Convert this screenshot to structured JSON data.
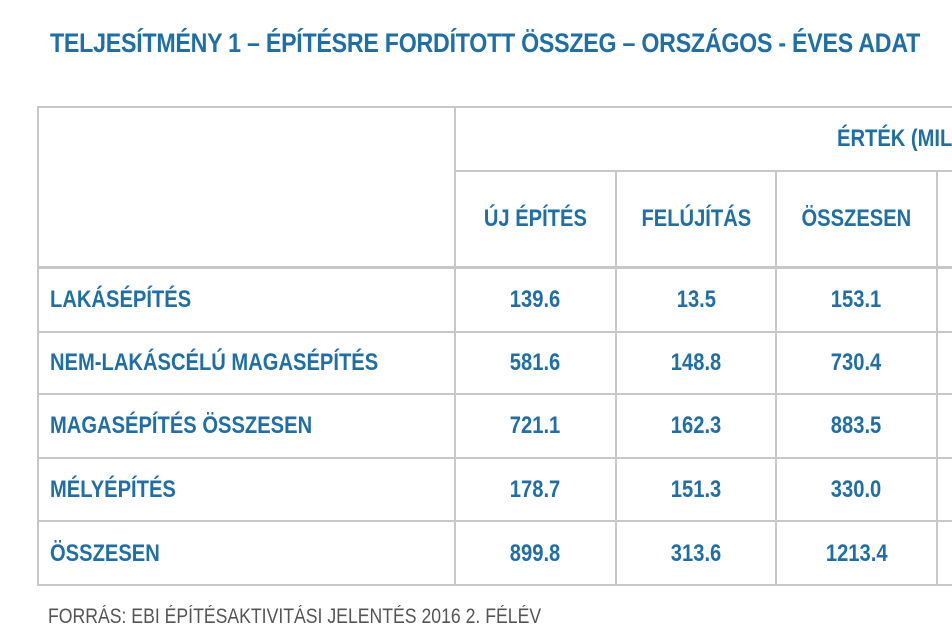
{
  "title": "TELJESÍTMÉNY 1 – ÉPÍTÉSRE FORDÍTOTT ÖSSZEG – ORSZÁGOS - ÉVES ADAT",
  "table": {
    "group_header": "ÉRTÉK (MIL",
    "columns": [
      "ÚJ ÉPÍTÉS",
      "FELÚJÍTÁS",
      "ÖSSZESEN"
    ],
    "rows": [
      {
        "label": "LAKÁSÉPÍTÉS",
        "values": [
          "139.6",
          "13.5",
          "153.1"
        ]
      },
      {
        "label": "NEM-LAKÁSCÉLÚ MAGASÉPÍTÉS",
        "values": [
          "581.6",
          "148.8",
          "730.4"
        ]
      },
      {
        "label": "MAGASÉPÍTÉS ÖSSZESEN",
        "values": [
          "721.1",
          "162.3",
          "883.5"
        ]
      },
      {
        "label": "MÉLYÉPÍTÉS",
        "values": [
          "178.7",
          "151.3",
          "330.0"
        ]
      },
      {
        "label": "ÖSSZESEN",
        "values": [
          "899.8",
          "313.6",
          "1213.4"
        ]
      }
    ]
  },
  "source": "FORRÁS: EBI ÉPÍTÉSAKTIVITÁSI JELENTÉS 2016 2. FÉLÉV",
  "colors": {
    "text_blue": "#1e6fa8",
    "grid_gray": "#c8c8c8",
    "source_gray": "#555555"
  }
}
